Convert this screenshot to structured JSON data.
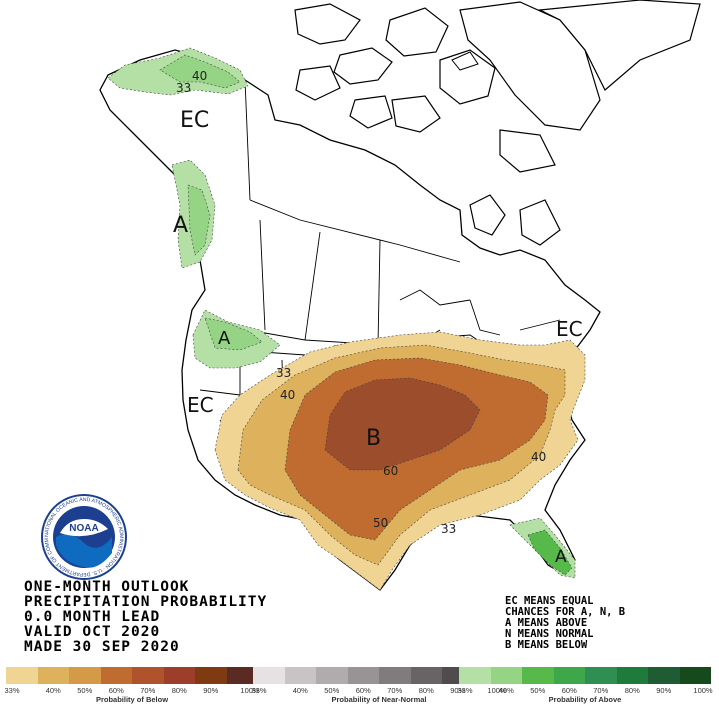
{
  "map_labels": {
    "ec_alaska": "EC",
    "ec_west": "EC",
    "ec_northeast": "EC",
    "above_pnw_coast": "A",
    "above_washington": "A",
    "above_florida": "A",
    "below_central": "B"
  },
  "contour_labels": {
    "alaska_40": "40",
    "alaska_33": "33",
    "west_33": "33",
    "west_40": "40",
    "central_60": "60",
    "south_50": "50",
    "gulf_33": "33",
    "southeast_40": "40"
  },
  "title_lines": [
    "ONE-MONTH OUTLOOK",
    "PRECIPITATION PROBABILITY",
    "0.0 MONTH LEAD",
    "VALID OCT 2020",
    "MADE 30 SEP 2020"
  ],
  "key_lines": [
    "EC MEANS EQUAL",
    "CHANCES FOR A, N, B",
    "A MEANS ABOVE",
    "N MEANS NORMAL",
    "B MEANS BELOW"
  ],
  "logo": {
    "text": "NOAA",
    "ring_text": "NATIONAL OCEANIC AND ATMOSPHERIC ADMINISTRATION · U.S. DEPARTMENT OF COMMERCE"
  },
  "legend": {
    "below": {
      "caption": "Probability of Below",
      "ticks": [
        "33%",
        "40%",
        "50%",
        "60%",
        "70%",
        "80%",
        "90%",
        "100%"
      ],
      "colors": [
        "#f0d494",
        "#deb25c",
        "#d59a48",
        "#c06b30",
        "#b0532c",
        "#9c3e2a",
        "#7e3a10",
        "#5b2a23"
      ]
    },
    "normal": {
      "caption": "Probability of Near-Normal",
      "ticks": [
        "33%",
        "40%",
        "50%",
        "60%",
        "70%",
        "80%",
        "90%",
        "100%"
      ],
      "colors": [
        "#e6e2e4",
        "#c8c4c6",
        "#b0acae",
        "#989496",
        "#807c7e",
        "#686466",
        "#504c4e",
        "#383436"
      ]
    },
    "above": {
      "caption": "Probability of Above",
      "ticks": [
        "33%",
        "40%",
        "50%",
        "60%",
        "70%",
        "80%",
        "90%",
        "100%"
      ],
      "colors": [
        "#b4e0a6",
        "#94d484",
        "#56b94a",
        "#3da74a",
        "#2f8f52",
        "#1e7b3c",
        "#1f5c33",
        "#144a1c"
      ]
    }
  }
}
